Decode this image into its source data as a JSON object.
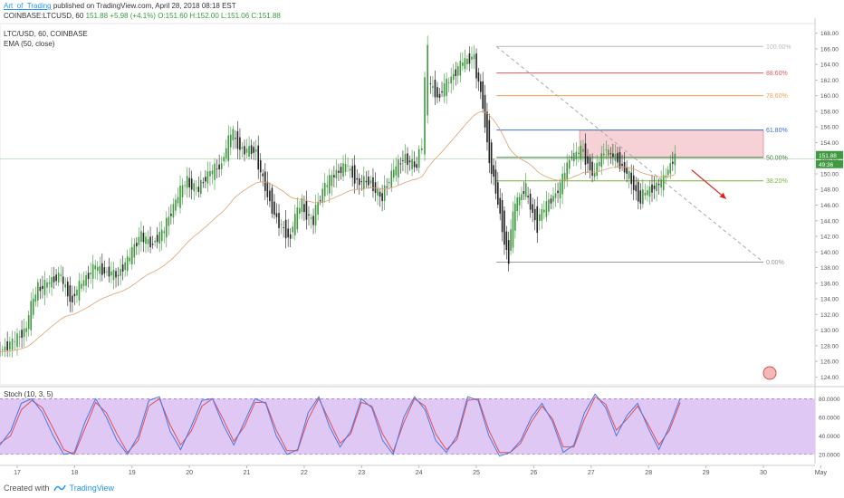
{
  "header": {
    "author": "Art_of_Trading",
    "published": "published on TradingView.com, April 28, 2018 08:18 EST",
    "symbol_line": "COINBASE:LTCUSD, 60",
    "price": "151.88",
    "change": "+5.98 (+4.1%)",
    "ohlc": "O:151.60 H:152.00 L:151.06 C:151.88"
  },
  "legend": {
    "symbol": "LTC/USD, 60, COINBASE",
    "ema": "EMA (50, close)"
  },
  "stoch_label": "Stoch (10, 3, 5)",
  "footer": {
    "created": "Created with",
    "brand": "TradingView"
  },
  "colors": {
    "up": "#3f9a3f",
    "down": "#222222",
    "ema": "#e0a070",
    "stoch_k": "#4a78e0",
    "stoch_d": "#e05050",
    "stoch_band": "#e0c8f5"
  },
  "chart_data": {
    "type": "line",
    "title": "LTC/USD, 60, COINBASE",
    "x_ticks": [
      "17",
      "18",
      "19",
      "20",
      "21",
      "22",
      "23",
      "24",
      "25",
      "26",
      "27",
      "28",
      "29",
      "30",
      "May"
    ],
    "price_axis": {
      "ylim": [
        123,
        169
      ],
      "ticks": [
        124,
        126,
        128,
        130,
        132,
        134,
        136,
        138,
        140,
        142,
        144,
        146,
        148,
        150,
        152,
        154,
        156,
        158,
        160,
        162,
        164,
        166,
        168
      ]
    },
    "price_path": [
      [
        16.7,
        127
      ],
      [
        17.0,
        128.5
      ],
      [
        17.2,
        130
      ],
      [
        17.4,
        135
      ],
      [
        17.6,
        136
      ],
      [
        17.8,
        137
      ],
      [
        18.0,
        134
      ],
      [
        18.2,
        136
      ],
      [
        18.4,
        138
      ],
      [
        18.6,
        137.5
      ],
      [
        18.8,
        137
      ],
      [
        19.0,
        139
      ],
      [
        19.2,
        142
      ],
      [
        19.4,
        141
      ],
      [
        19.6,
        142.5
      ],
      [
        19.8,
        146
      ],
      [
        20.0,
        149
      ],
      [
        20.2,
        148
      ],
      [
        20.4,
        150
      ],
      [
        20.6,
        151
      ],
      [
        20.8,
        155
      ],
      [
        21.0,
        153
      ],
      [
        21.2,
        153
      ],
      [
        21.4,
        148
      ],
      [
        21.6,
        144
      ],
      [
        21.8,
        142
      ],
      [
        22.0,
        146
      ],
      [
        22.2,
        144
      ],
      [
        22.4,
        148
      ],
      [
        22.6,
        150
      ],
      [
        22.8,
        151
      ],
      [
        23.0,
        149
      ],
      [
        23.2,
        149
      ],
      [
        23.4,
        147
      ],
      [
        23.6,
        150
      ],
      [
        23.8,
        152
      ],
      [
        24.0,
        151
      ],
      [
        24.1,
        153
      ],
      [
        24.2,
        162
      ],
      [
        24.4,
        160
      ],
      [
        24.6,
        162
      ],
      [
        24.8,
        164
      ],
      [
        25.0,
        165
      ],
      [
        25.15,
        160
      ],
      [
        25.3,
        152
      ],
      [
        25.45,
        146
      ],
      [
        25.6,
        140
      ],
      [
        25.75,
        146
      ],
      [
        25.9,
        148
      ],
      [
        26.1,
        144
      ],
      [
        26.3,
        146
      ],
      [
        26.5,
        148
      ],
      [
        26.7,
        152
      ],
      [
        26.9,
        153
      ],
      [
        27.1,
        150
      ],
      [
        27.3,
        153
      ],
      [
        27.5,
        152
      ],
      [
        27.7,
        150
      ],
      [
        27.9,
        147
      ],
      [
        28.1,
        148
      ],
      [
        28.3,
        149
      ],
      [
        28.5,
        151.88
      ]
    ],
    "fibonacci": {
      "levels": [
        {
          "label": "100.00%",
          "price": 166.3,
          "color": "#bbbbbb"
        },
        {
          "label": "88.60%",
          "price": 162.9,
          "color": "#e05a5a"
        },
        {
          "label": "78.60%",
          "price": 160.0,
          "color": "#f0a050"
        },
        {
          "label": "61.80%",
          "price": 155.6,
          "color": "#3a6ed8"
        },
        {
          "label": "50.00%",
          "price": 152.1,
          "color": "#3a7a3a"
        },
        {
          "label": "38.20%",
          "price": 149.1,
          "color": "#7ab040"
        },
        {
          "label": "0.00%",
          "price": 138.7,
          "color": "#999999"
        }
      ],
      "zone": {
        "from": 152.1,
        "to": 155.6
      }
    },
    "current_price_tags": [
      "151.88",
      "49:36"
    ],
    "stoch_axis": {
      "ylim": [
        10,
        92
      ],
      "ticks": [
        "80.0000",
        "60.0000",
        "40.0000",
        "20.0000"
      ],
      "bands": [
        20,
        80
      ]
    },
    "stoch_k": [
      30,
      45,
      75,
      80,
      65,
      40,
      20,
      22,
      55,
      80,
      60,
      35,
      20,
      40,
      78,
      82,
      45,
      25,
      50,
      78,
      80,
      52,
      30,
      55,
      80,
      75,
      40,
      20,
      25,
      65,
      82,
      50,
      28,
      45,
      80,
      70,
      35,
      20,
      60,
      82,
      68,
      35,
      22,
      40,
      82,
      78,
      40,
      18,
      22,
      35,
      60,
      75,
      55,
      22,
      30,
      65,
      85,
      70,
      40,
      62,
      75,
      48,
      25,
      50,
      80
    ],
    "stoch_d": [
      32,
      40,
      68,
      78,
      70,
      48,
      25,
      20,
      48,
      76,
      65,
      42,
      22,
      35,
      72,
      80,
      52,
      30,
      45,
      72,
      80,
      58,
      34,
      50,
      76,
      76,
      46,
      24,
      24,
      58,
      80,
      56,
      32,
      42,
      76,
      72,
      42,
      23,
      54,
      80,
      72,
      42,
      25,
      36,
      78,
      80,
      46,
      22,
      22,
      32,
      55,
      72,
      58,
      28,
      28,
      58,
      82,
      74,
      46,
      58,
      72,
      52,
      30,
      46,
      76
    ]
  }
}
